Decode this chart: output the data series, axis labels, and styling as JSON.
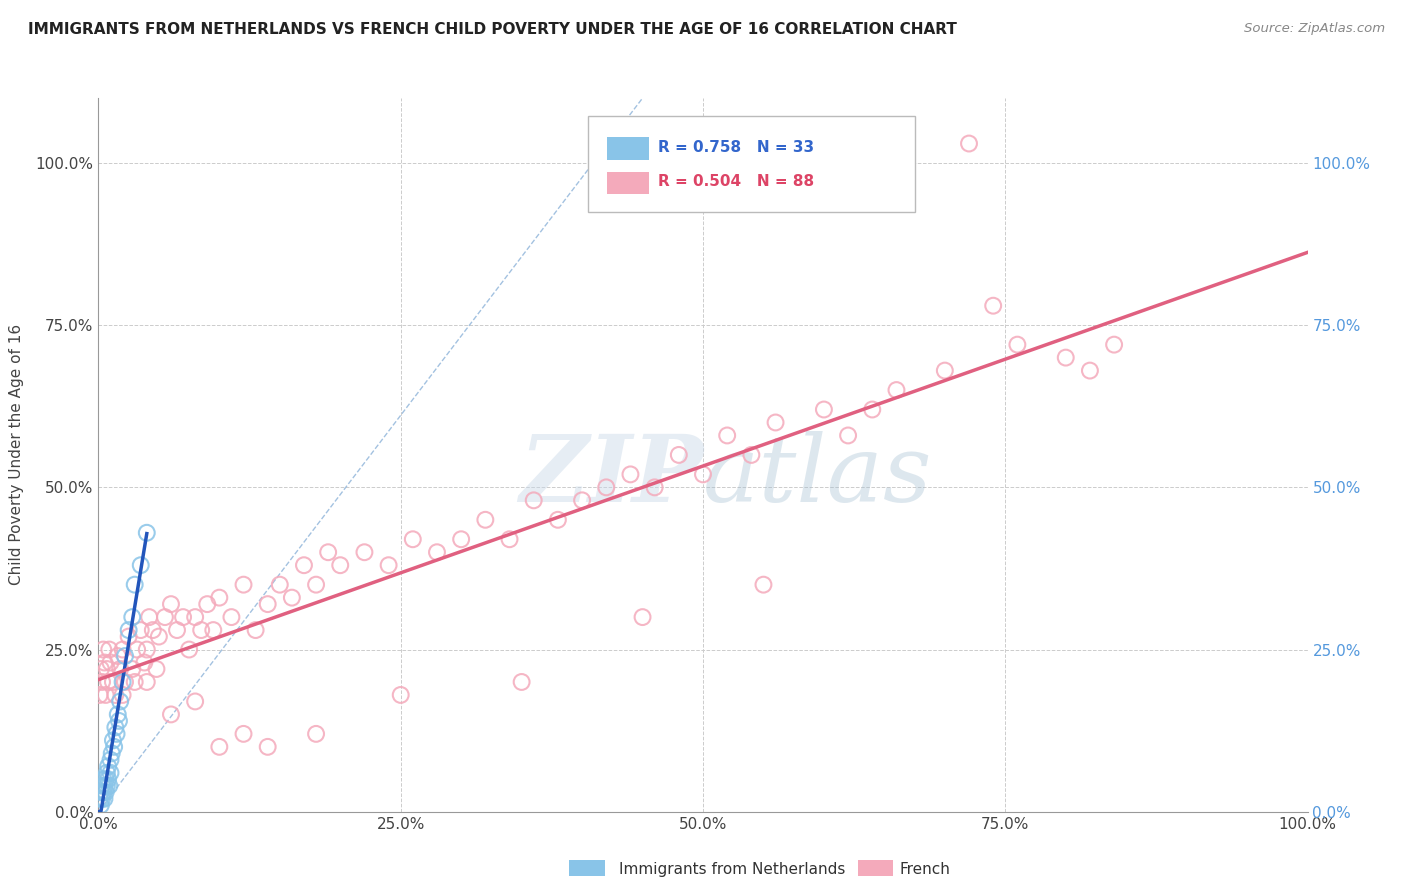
{
  "title": "IMMIGRANTS FROM NETHERLANDS VS FRENCH CHILD POVERTY UNDER THE AGE OF 16 CORRELATION CHART",
  "source": "Source: ZipAtlas.com",
  "ylabel": "Child Poverty Under the Age of 16",
  "xlim": [
    0,
    1.0
  ],
  "ylim": [
    0,
    1.1
  ],
  "x_ticks": [
    0.0,
    0.25,
    0.5,
    0.75,
    1.0
  ],
  "x_tick_labels": [
    "0.0%",
    "25.0%",
    "50.0%",
    "75.0%",
    "100.0%"
  ],
  "y_ticks": [
    0.0,
    0.25,
    0.5,
    0.75,
    1.0
  ],
  "y_tick_labels": [
    "0.0%",
    "25.0%",
    "50.0%",
    "75.0%",
    "100.0%"
  ],
  "blue_color": "#89C4E8",
  "pink_color": "#F4AABB",
  "blue_line_color": "#2255BB",
  "pink_line_color": "#E06080",
  "diag_color": "#99BBDD",
  "legend_blue_r": "R = 0.758",
  "legend_blue_n": "N = 33",
  "legend_pink_r": "R = 0.504",
  "legend_pink_n": "N = 88",
  "watermark": "ZIPatlas",
  "blue_scatter_x": [
    0.001,
    0.002,
    0.002,
    0.003,
    0.003,
    0.004,
    0.004,
    0.005,
    0.005,
    0.006,
    0.006,
    0.007,
    0.007,
    0.008,
    0.008,
    0.009,
    0.01,
    0.01,
    0.011,
    0.012,
    0.013,
    0.014,
    0.015,
    0.016,
    0.017,
    0.018,
    0.02,
    0.022,
    0.025,
    0.028,
    0.03,
    0.035,
    0.04
  ],
  "blue_scatter_y": [
    0.02,
    0.03,
    0.01,
    0.04,
    0.02,
    0.05,
    0.03,
    0.04,
    0.02,
    0.05,
    0.03,
    0.06,
    0.04,
    0.05,
    0.07,
    0.04,
    0.08,
    0.06,
    0.09,
    0.11,
    0.1,
    0.13,
    0.12,
    0.15,
    0.14,
    0.17,
    0.2,
    0.24,
    0.28,
    0.3,
    0.35,
    0.38,
    0.43
  ],
  "pink_scatter_x": [
    0.001,
    0.002,
    0.003,
    0.004,
    0.005,
    0.006,
    0.007,
    0.008,
    0.009,
    0.01,
    0.012,
    0.014,
    0.016,
    0.018,
    0.02,
    0.022,
    0.025,
    0.028,
    0.03,
    0.032,
    0.035,
    0.038,
    0.04,
    0.042,
    0.045,
    0.048,
    0.05,
    0.055,
    0.06,
    0.065,
    0.07,
    0.075,
    0.08,
    0.085,
    0.09,
    0.095,
    0.1,
    0.11,
    0.12,
    0.13,
    0.14,
    0.15,
    0.16,
    0.17,
    0.18,
    0.19,
    0.2,
    0.22,
    0.24,
    0.26,
    0.28,
    0.3,
    0.32,
    0.34,
    0.36,
    0.38,
    0.4,
    0.42,
    0.44,
    0.46,
    0.48,
    0.5,
    0.52,
    0.54,
    0.56,
    0.6,
    0.62,
    0.64,
    0.66,
    0.7,
    0.72,
    0.74,
    0.76,
    0.8,
    0.82,
    0.84,
    0.02,
    0.04,
    0.06,
    0.08,
    0.1,
    0.12,
    0.14,
    0.18,
    0.25,
    0.35,
    0.45,
    0.55
  ],
  "pink_scatter_y": [
    0.18,
    0.22,
    0.2,
    0.25,
    0.23,
    0.18,
    0.22,
    0.2,
    0.25,
    0.23,
    0.2,
    0.18,
    0.24,
    0.22,
    0.25,
    0.2,
    0.27,
    0.22,
    0.2,
    0.25,
    0.28,
    0.23,
    0.25,
    0.3,
    0.28,
    0.22,
    0.27,
    0.3,
    0.32,
    0.28,
    0.3,
    0.25,
    0.3,
    0.28,
    0.32,
    0.28,
    0.33,
    0.3,
    0.35,
    0.28,
    0.32,
    0.35,
    0.33,
    0.38,
    0.35,
    0.4,
    0.38,
    0.4,
    0.38,
    0.42,
    0.4,
    0.42,
    0.45,
    0.42,
    0.48,
    0.45,
    0.48,
    0.5,
    0.52,
    0.5,
    0.55,
    0.52,
    0.58,
    0.55,
    0.6,
    0.62,
    0.58,
    0.62,
    0.65,
    0.68,
    1.03,
    0.78,
    0.72,
    0.7,
    0.68,
    0.72,
    0.18,
    0.2,
    0.15,
    0.17,
    0.1,
    0.12,
    0.1,
    0.12,
    0.18,
    0.2,
    0.3,
    0.35
  ]
}
